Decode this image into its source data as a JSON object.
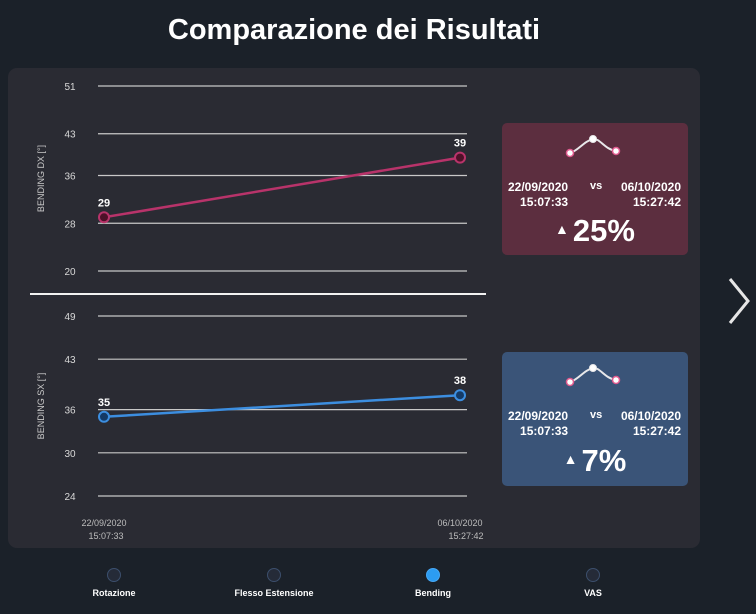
{
  "page": {
    "title": "Comparazione dei Risultati"
  },
  "chart_data": [
    {
      "type": "line",
      "ylabel": "BENDING DX [°]",
      "yticks": [
        51,
        43,
        36,
        28,
        20
      ],
      "ylim": [
        20,
        51
      ],
      "x": [
        "22/09/2020 15:07:33",
        "06/10/2020 15:27:42"
      ],
      "series": [
        {
          "values": [
            29,
            39
          ],
          "data_labels": [
            "29",
            "39"
          ],
          "color": "#b8336a",
          "marker_fill": "#4d1128"
        }
      ]
    },
    {
      "type": "line",
      "ylabel": "BENDING SX [°]",
      "yticks": [
        49,
        43,
        36,
        30,
        24
      ],
      "ylim": [
        24,
        49
      ],
      "x": [
        "22/09/2020 15:07:33",
        "06/10/2020 15:27:42"
      ],
      "series": [
        {
          "values": [
            35,
            38
          ],
          "data_labels": [
            "35",
            "38"
          ],
          "color": "#3c8ee0",
          "marker_fill": "#143a66"
        }
      ]
    }
  ],
  "x_axis": {
    "tick_dates": [
      "22/09/2020",
      "06/10/2020"
    ],
    "tick_times": [
      "15:07:33",
      "15:27:42"
    ]
  },
  "cards": [
    {
      "date_left": "22/09/2020",
      "time_left": "15:07:33",
      "vs": "vs",
      "date_right": "06/10/2020",
      "time_right": "15:27:42",
      "change": "25%",
      "direction": "up",
      "background": "#5c2e3f",
      "sparkline_icon": "trend-sparkline-icon"
    },
    {
      "date_left": "22/09/2020",
      "time_left": "15:07:33",
      "vs": "vs",
      "date_right": "06/10/2020",
      "time_right": "15:27:42",
      "change": "7%",
      "direction": "up",
      "background": "#3a5478",
      "sparkline_icon": "trend-sparkline-icon"
    }
  ],
  "pager": {
    "items": [
      {
        "label": "Rotazione",
        "active": false
      },
      {
        "label": "Flesso Estensione",
        "active": false
      },
      {
        "label": "Bending",
        "active": true
      },
      {
        "label": "VAS",
        "active": false
      }
    ]
  },
  "navigation": {
    "next_icon": "chevron-right-icon"
  },
  "colors": {
    "background": "#1b2129",
    "panel": "#2a2b33",
    "grid": "#c8c8c8",
    "dx_series": "#b8336a",
    "sx_series": "#3c8ee0",
    "active_dot": "#2c9cf2"
  }
}
